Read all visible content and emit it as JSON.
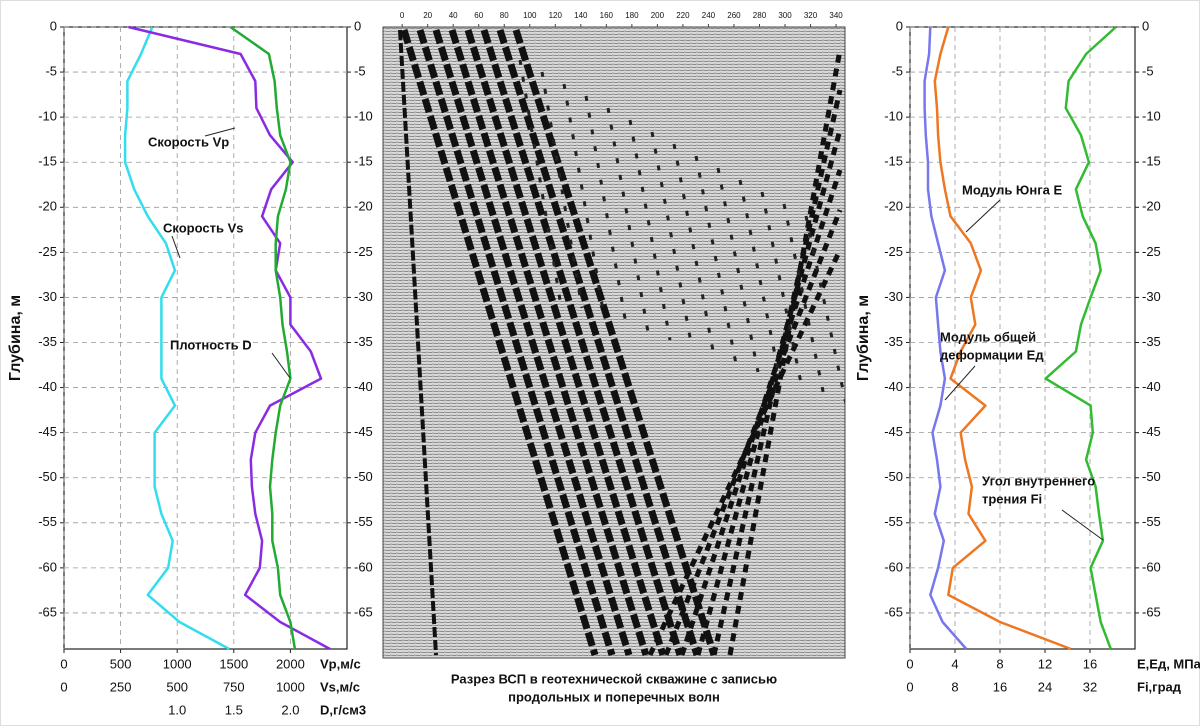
{
  "chart_data": [
    {
      "type": "line",
      "ylabel": "Глубина, м",
      "ylim": [
        -69,
        0
      ],
      "yticks": [
        0,
        -5,
        -10,
        -15,
        -20,
        -25,
        -30,
        -35,
        -40,
        -45,
        -50,
        -55,
        -60,
        -65
      ],
      "grid": true,
      "depth": [
        0,
        -3,
        -6,
        -9,
        -12,
        -15,
        -18,
        -21,
        -24,
        -27,
        -30,
        -33,
        -36,
        -39,
        -42,
        -45,
        -48,
        -51,
        -54,
        -57,
        -60,
        -63,
        -66,
        -69
      ],
      "xaxes": [
        {
          "label": "Vp,м/с",
          "xlim": [
            0,
            2500
          ],
          "xticks": [
            0,
            500,
            1000,
            1500,
            2000
          ]
        },
        {
          "label": "Vs,м/с",
          "xlim": [
            0,
            1250
          ],
          "xticks": [
            0,
            250,
            500,
            750,
            1000
          ]
        },
        {
          "label": "D,г/см3",
          "xlim": [
            0,
            2.5
          ],
          "xticks": [
            {
              "value": 1,
              "label": "1.0"
            },
            {
              "value": 1.5,
              "label": "1.5"
            },
            {
              "value": 2,
              "label": "2.0"
            }
          ]
        }
      ],
      "series": [
        {
          "color": "#33ddee",
          "axis": 1,
          "values": [
            390,
            340,
            280,
            280,
            270,
            270,
            310,
            370,
            450,
            490,
            430,
            430,
            430,
            430,
            490,
            400,
            400,
            400,
            430,
            480,
            460,
            370,
            510,
            730
          ]
        },
        {
          "color": "#8a2be2",
          "axis": 0,
          "values": [
            570,
            1560,
            1690,
            1700,
            1820,
            2020,
            1830,
            1750,
            1910,
            1870,
            2000,
            2000,
            2180,
            2270,
            1820,
            1690,
            1650,
            1660,
            1690,
            1750,
            1730,
            1600,
            1910,
            2350
          ]
        },
        {
          "color": "#22aa33",
          "axis": 2,
          "values": [
            1.47,
            1.81,
            1.86,
            1.88,
            1.91,
            2.0,
            1.96,
            1.89,
            1.87,
            1.87,
            1.91,
            1.93,
            1.97,
            2.0,
            1.91,
            1.87,
            1.84,
            1.82,
            1.84,
            1.84,
            1.89,
            1.91,
            2.0,
            2.04
          ]
        }
      ],
      "annotations": [
        {
          "lines": [
            "Скорость Vp"
          ]
        },
        {
          "lines": [
            "Скорость Vs"
          ]
        },
        {
          "lines": [
            "Плотность D"
          ]
        }
      ]
    },
    {
      "type": "seismogram",
      "title": [
        "Разрез ВСП в геотехнической скважине с записью",
        "продольных и поперечных волн"
      ],
      "xlim": [
        -15,
        347
      ],
      "xticks": [
        0,
        20,
        40,
        60,
        80,
        100,
        120,
        140,
        160,
        180,
        200,
        220,
        240,
        260,
        280,
        300,
        320,
        340
      ]
    },
    {
      "type": "line",
      "ylabel": "Глубина, м",
      "ylim": [
        -69,
        0
      ],
      "yticks": [
        0,
        -5,
        -10,
        -15,
        -20,
        -25,
        -30,
        -35,
        -40,
        -45,
        -50,
        -55,
        -60,
        -65
      ],
      "grid": true,
      "depth": [
        0,
        -3,
        -6,
        -9,
        -12,
        -15,
        -18,
        -21,
        -24,
        -27,
        -30,
        -33,
        -36,
        -39,
        -42,
        -45,
        -48,
        -51,
        -54,
        -57,
        -60,
        -63,
        -66,
        -69
      ],
      "xaxes": [
        {
          "label": "Е,Ед, МПа",
          "xlim": [
            0,
            20
          ],
          "xticks": [
            0,
            4,
            8,
            12,
            16
          ]
        },
        {
          "label": "Fi,град",
          "xlim": [
            0,
            40
          ],
          "xticks": [
            0,
            8,
            16,
            24,
            32
          ]
        }
      ],
      "series": [
        {
          "color": "#7777ee",
          "axis": 0,
          "values": [
            1.8,
            1.7,
            1.3,
            1.3,
            1.4,
            1.6,
            1.6,
            1.9,
            2.5,
            3.1,
            2.3,
            2.5,
            2.7,
            3.1,
            2.7,
            2.0,
            2.4,
            2.7,
            2.2,
            3.0,
            2.5,
            1.8,
            2.9,
            5.0
          ]
        },
        {
          "color": "#ee7722",
          "axis": 0,
          "values": [
            3.4,
            2.7,
            2.2,
            2.4,
            2.5,
            2.7,
            3.1,
            3.6,
            5.4,
            6.3,
            5.4,
            5.8,
            4.5,
            3.6,
            6.7,
            4.5,
            4.9,
            5.5,
            5.2,
            6.7,
            3.8,
            3.4,
            8.0,
            14.3
          ]
        },
        {
          "color": "#33bb33",
          "axis": 1,
          "values": [
            36.6,
            31.3,
            28.2,
            27.7,
            30.4,
            31.8,
            29.5,
            30.7,
            33.0,
            33.9,
            32.1,
            30.4,
            29.5,
            24.1,
            32.1,
            32.5,
            31.3,
            33.0,
            33.6,
            34.3,
            32.1,
            33.0,
            33.9,
            35.7
          ]
        }
      ],
      "annotations": [
        {
          "lines": [
            "Модуль Юнга Е"
          ]
        },
        {
          "lines": [
            "Модуль общей",
            "деформации Ед"
          ]
        },
        {
          "lines": [
            "Угол внутреннего",
            "трения Fi"
          ]
        }
      ]
    }
  ]
}
